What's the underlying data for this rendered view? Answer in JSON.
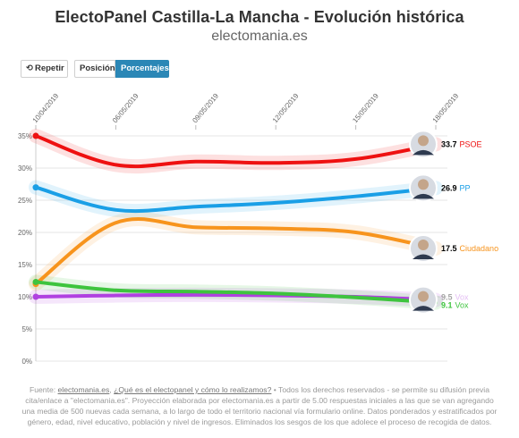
{
  "header": {
    "title": "ElectoPanel Castilla-La Mancha - Evolución histórica",
    "subtitle": "electomania.es"
  },
  "controls": {
    "replay_label": "Repetir",
    "position_label": "Posición",
    "percent_label": "Porcentajes"
  },
  "chart_data": {
    "type": "line",
    "x": [
      "10/04/2019",
      "06/05/2019",
      "09/05/2019",
      "12/05/2019",
      "15/05/2019",
      "18/05/2019"
    ],
    "ylim": [
      0,
      35
    ],
    "yticks": [
      "0%",
      "5%",
      "10%",
      "15%",
      "20%",
      "25%",
      "30%",
      "35%"
    ],
    "grid": true,
    "series": [
      {
        "name": "PSOE",
        "color": "#ee1111",
        "end_label": "33.7",
        "values": [
          35.0,
          30.5,
          31.0,
          30.8,
          31.4,
          33.7
        ]
      },
      {
        "name": "PP",
        "color": "#1a9fe6",
        "end_label": "26.9",
        "values": [
          27.0,
          23.5,
          24.0,
          24.6,
          25.6,
          26.9
        ]
      },
      {
        "name": "Ciudadano",
        "color": "#f7941d",
        "end_label": "17.5",
        "values": [
          12.0,
          21.5,
          20.8,
          20.6,
          20.0,
          17.5
        ]
      },
      {
        "name": "Vox",
        "color": "#b041e0",
        "end_label": "9.5",
        "values": [
          10.0,
          10.2,
          10.3,
          10.2,
          10.0,
          9.5
        ]
      },
      {
        "name": "Vox",
        "color": "#3ec43e",
        "end_label": "9.1",
        "values": [
          12.3,
          11.0,
          10.8,
          10.5,
          9.9,
          9.1
        ]
      }
    ]
  },
  "footer": {
    "prefix": "Fuente:",
    "source_link": "electomania.es",
    "faq_link": "¿Qué es el electopanel y cómo lo realizamos?",
    "text": "• Todos los derechos reservados - se permite su difusión previa cita/enlace a \"electomania.es\". Proyección elaborada por electomania.es a partir de 5.00 respuestas iniciales a las que se van agregando una media de 500 nuevas cada semana, a lo largo de todo el territorio nacional vía formulario online. Datos ponderados y estratificados por género, edad, nivel educativo, población y nivel de ingresos. Eliminados los sesgos de los que adolece el proceso de recogida de datos."
  }
}
